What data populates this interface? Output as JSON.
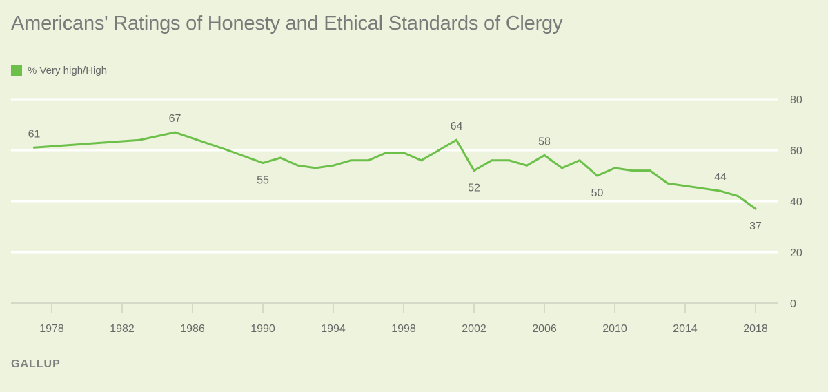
{
  "title": "Americans' Ratings of Honesty and Ethical Standards of Clergy",
  "source": "GALLUP",
  "colors": {
    "background": "#edf3dd",
    "series": "#6cc04a",
    "grid": "#ffffff",
    "axis": "#d4d9c8"
  },
  "chart_data": {
    "type": "line",
    "title": "Americans' Ratings of Honesty and Ethical Standards of Clergy",
    "xlabel": "",
    "ylabel": "",
    "xlim": [
      1976.5,
      2019.5
    ],
    "ylim": [
      0,
      80
    ],
    "x_ticks": [
      1978,
      1982,
      1986,
      1990,
      1994,
      1998,
      2002,
      2006,
      2010,
      2014,
      2018
    ],
    "y_ticks": [
      0,
      20,
      40,
      60,
      80
    ],
    "grid": true,
    "legend_position": "top-left",
    "series": [
      {
        "name": "% Very high/High",
        "color": "#6cc04a",
        "points": [
          {
            "x": 1977,
            "y": 61
          },
          {
            "x": 1981,
            "y": 63
          },
          {
            "x": 1983,
            "y": 64
          },
          {
            "x": 1985,
            "y": 67
          },
          {
            "x": 1988,
            "y": 60
          },
          {
            "x": 1990,
            "y": 55
          },
          {
            "x": 1991,
            "y": 57
          },
          {
            "x": 1992,
            "y": 54
          },
          {
            "x": 1993,
            "y": 53
          },
          {
            "x": 1994,
            "y": 54
          },
          {
            "x": 1995,
            "y": 56
          },
          {
            "x": 1996,
            "y": 56
          },
          {
            "x": 1997,
            "y": 59
          },
          {
            "x": 1998,
            "y": 59
          },
          {
            "x": 1999,
            "y": 56
          },
          {
            "x": 2000,
            "y": 60
          },
          {
            "x": 2001,
            "y": 64
          },
          {
            "x": 2002,
            "y": 52
          },
          {
            "x": 2003,
            "y": 56
          },
          {
            "x": 2004,
            "y": 56
          },
          {
            "x": 2005,
            "y": 54
          },
          {
            "x": 2006,
            "y": 58
          },
          {
            "x": 2007,
            "y": 53
          },
          {
            "x": 2008,
            "y": 56
          },
          {
            "x": 2009,
            "y": 50
          },
          {
            "x": 2010,
            "y": 53
          },
          {
            "x": 2011,
            "y": 52
          },
          {
            "x": 2012,
            "y": 52
          },
          {
            "x": 2013,
            "y": 47
          },
          {
            "x": 2016,
            "y": 44
          },
          {
            "x": 2017,
            "y": 42
          },
          {
            "x": 2018,
            "y": 37
          }
        ]
      }
    ],
    "annotations": [
      {
        "x": 1977,
        "y": 61,
        "text": "61",
        "position": "above"
      },
      {
        "x": 1985,
        "y": 67,
        "text": "67",
        "position": "above"
      },
      {
        "x": 1990,
        "y": 55,
        "text": "55",
        "position": "below"
      },
      {
        "x": 2001,
        "y": 64,
        "text": "64",
        "position": "above"
      },
      {
        "x": 2002,
        "y": 52,
        "text": "52",
        "position": "below"
      },
      {
        "x": 2006,
        "y": 58,
        "text": "58",
        "position": "above"
      },
      {
        "x": 2009,
        "y": 50,
        "text": "50",
        "position": "below"
      },
      {
        "x": 2016,
        "y": 44,
        "text": "44",
        "position": "above"
      },
      {
        "x": 2018,
        "y": 37,
        "text": "37",
        "position": "below"
      }
    ]
  }
}
